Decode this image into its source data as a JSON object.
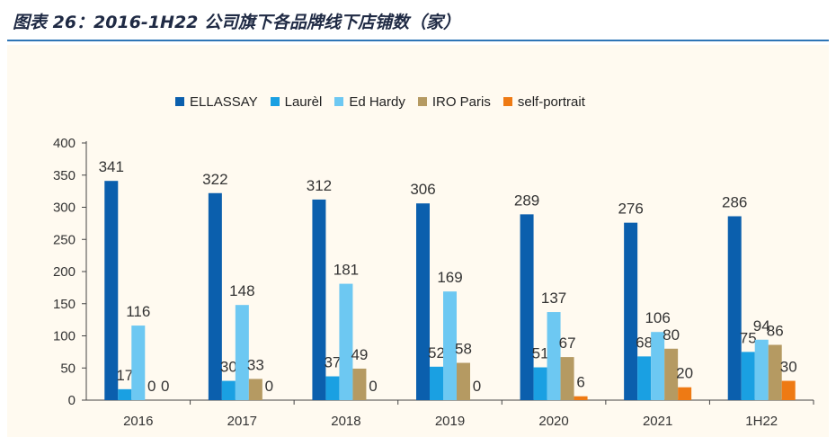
{
  "header": {
    "title": "图表 26：2016-1H22 公司旗下各品牌线下店铺数（家）"
  },
  "colors": {
    "title_rule": "#2e75b6",
    "background": "#fffaf0",
    "series": [
      "#0b5fad",
      "#1aa0e2",
      "#6dc8f2",
      "#b59a62",
      "#ee7a14"
    ]
  },
  "chart_data": {
    "type": "bar",
    "title": "",
    "xlabel": "",
    "ylabel": "",
    "ylim": [
      0,
      400
    ],
    "yticks": [
      0,
      50,
      100,
      150,
      200,
      250,
      300,
      350,
      400
    ],
    "grid": false,
    "legend_position": "top",
    "categories": [
      "2016",
      "2017",
      "2018",
      "2019",
      "2020",
      "2021",
      "1H22"
    ],
    "series": [
      {
        "name": "ELLASSAY",
        "values": [
          341,
          322,
          312,
          306,
          289,
          276,
          286
        ]
      },
      {
        "name": "Laurèl",
        "values": [
          17,
          30,
          37,
          52,
          51,
          68,
          75
        ]
      },
      {
        "name": "Ed Hardy",
        "values": [
          116,
          148,
          181,
          169,
          137,
          106,
          94
        ]
      },
      {
        "name": "IRO Paris",
        "values": [
          0,
          33,
          49,
          58,
          67,
          80,
          86
        ]
      },
      {
        "name": "self-portrait",
        "values": [
          0,
          0,
          0,
          0,
          6,
          20,
          30
        ]
      }
    ]
  }
}
